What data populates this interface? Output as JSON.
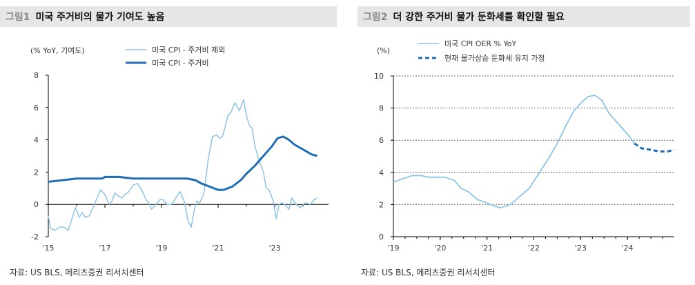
{
  "charts": [
    {
      "fig_num": "그림1",
      "title": "미국 주거비의 물가 기여도 높음",
      "source": "자료: US BLS, 메리츠증권 리서치센터",
      "chart_data": {
        "type": "line",
        "unit_label": "(% YoY, 기여도)",
        "x_ticks": [
          "'15",
          "'17",
          "'19",
          "'21",
          "'23"
        ],
        "y_ticks": [
          "-2",
          "0",
          "2",
          "4",
          "6",
          "8"
        ],
        "ylim": [
          -2,
          8
        ],
        "xlim": [
          2015.0,
          2024.9
        ],
        "grid": false,
        "legend_position": "top",
        "series": [
          {
            "name": "미국 CPI - 주거비 제외",
            "color": "#8ec3e6",
            "style": "thin",
            "x": [
              2015.0,
              2015.08,
              2015.25,
              2015.4,
              2015.55,
              2015.7,
              2015.8,
              2015.95,
              2016.1,
              2016.2,
              2016.3,
              2016.45,
              2016.55,
              2016.7,
              2016.85,
              2017.0,
              2017.15,
              2017.25,
              2017.35,
              2017.5,
              2017.6,
              2017.7,
              2017.85,
              2018.0,
              2018.15,
              2018.3,
              2018.45,
              2018.55,
              2018.65,
              2018.8,
              2018.95,
              2019.05,
              2019.2,
              2019.35,
              2019.5,
              2019.65,
              2019.8,
              2019.95,
              2020.05,
              2020.15,
              2020.25,
              2020.35,
              2020.5,
              2020.65,
              2020.8,
              2020.95,
              2021.05,
              2021.15,
              2021.25,
              2021.35,
              2021.45,
              2021.6,
              2021.75,
              2021.9,
              2022.0,
              2022.1,
              2022.2,
              2022.3,
              2022.45,
              2022.6,
              2022.7,
              2022.8,
              2022.95,
              2023.05,
              2023.15,
              2023.25,
              2023.35,
              2023.5,
              2023.6,
              2023.75,
              2023.9,
              2024.0,
              2024.1,
              2024.25,
              2024.4,
              2024.5
            ],
            "y": [
              -0.7,
              -1.5,
              -1.6,
              -1.4,
              -1.4,
              -1.6,
              -1.1,
              -0.2,
              -0.8,
              -0.5,
              -0.8,
              -0.7,
              -0.3,
              0.3,
              0.9,
              0.6,
              0.0,
              0.2,
              0.7,
              0.5,
              0.4,
              0.6,
              0.8,
              1.2,
              1.3,
              0.9,
              0.3,
              0.1,
              -0.3,
              0.0,
              0.3,
              0.3,
              0.0,
              0.0,
              0.4,
              0.8,
              0.2,
              -1.1,
              -1.4,
              -0.4,
              0.2,
              0.1,
              0.7,
              2.8,
              4.2,
              4.3,
              4.1,
              4.2,
              4.8,
              5.5,
              5.7,
              6.3,
              5.8,
              6.5,
              5.5,
              4.9,
              4.7,
              3.6,
              2.7,
              2.0,
              1.0,
              0.9,
              0.2,
              -0.9,
              0.0,
              0.1,
              0.0,
              -0.3,
              0.4,
              0.0,
              -0.2,
              0.0,
              0.1,
              0.0,
              0.3,
              0.4
            ]
          },
          {
            "name": "미국 CPI - 주거비",
            "color": "#1f6db5",
            "style": "thick",
            "x": [
              2015.0,
              2015.5,
              2016.0,
              2016.5,
              2016.9,
              2017.0,
              2017.5,
              2018.0,
              2018.5,
              2019.0,
              2019.5,
              2019.9,
              2020.2,
              2020.4,
              2020.7,
              2021.0,
              2021.2,
              2021.5,
              2021.8,
              2022.0,
              2022.3,
              2022.6,
              2022.9,
              2023.1,
              2023.3,
              2023.5,
              2023.7,
              2023.9,
              2024.1,
              2024.3,
              2024.5
            ],
            "y": [
              1.4,
              1.5,
              1.6,
              1.6,
              1.6,
              1.7,
              1.7,
              1.6,
              1.6,
              1.6,
              1.6,
              1.6,
              1.5,
              1.3,
              1.1,
              0.9,
              0.9,
              1.1,
              1.5,
              1.9,
              2.4,
              3.0,
              3.6,
              4.1,
              4.2,
              4.0,
              3.7,
              3.5,
              3.3,
              3.1,
              3.0
            ]
          }
        ]
      }
    },
    {
      "fig_num": "그림2",
      "title": "더 강한 주거비 물가 둔화세를 확인할 필요",
      "source": "자료: US BLS, 메리츠증권 리서치센터",
      "chart_data": {
        "type": "line",
        "unit_label": "(%)",
        "x_ticks": [
          "'19",
          "'20",
          "'21",
          "'22",
          "'23",
          "'24"
        ],
        "y_ticks": [
          "0",
          "2",
          "4",
          "6",
          "8",
          "10"
        ],
        "ylim": [
          0,
          10
        ],
        "xlim": [
          2019.0,
          2025.0
        ],
        "grid": true,
        "grid_style": "dotted horizontal",
        "legend_position": "top",
        "series": [
          {
            "name": "미국 CPI OER % YoY",
            "color": "#8ec3e6",
            "style": "solid",
            "x": [
              2019.0,
              2019.2,
              2019.4,
              2019.6,
              2019.75,
              2019.9,
              2020.1,
              2020.3,
              2020.45,
              2020.6,
              2020.8,
              2021.0,
              2021.15,
              2021.3,
              2021.5,
              2021.7,
              2021.9,
              2022.1,
              2022.3,
              2022.5,
              2022.7,
              2022.85,
              2023.0,
              2023.15,
              2023.3,
              2023.45,
              2023.6,
              2023.75,
              2023.9,
              2024.05,
              2024.15
            ],
            "y": [
              3.4,
              3.6,
              3.8,
              3.8,
              3.7,
              3.7,
              3.7,
              3.5,
              3.0,
              2.8,
              2.3,
              2.1,
              1.9,
              1.8,
              2.0,
              2.5,
              3.0,
              3.9,
              4.8,
              5.8,
              7.0,
              7.8,
              8.3,
              8.7,
              8.8,
              8.5,
              7.7,
              7.2,
              6.7,
              6.2,
              5.8
            ]
          },
          {
            "name": "현재 물가상승 둔화세 유지 가정",
            "color": "#1f6db5",
            "style": "dashed",
            "x": [
              2024.15,
              2024.3,
              2024.5,
              2024.7,
              2024.85,
              2025.0
            ],
            "y": [
              5.8,
              5.5,
              5.4,
              5.3,
              5.3,
              5.4
            ]
          }
        ]
      }
    }
  ]
}
